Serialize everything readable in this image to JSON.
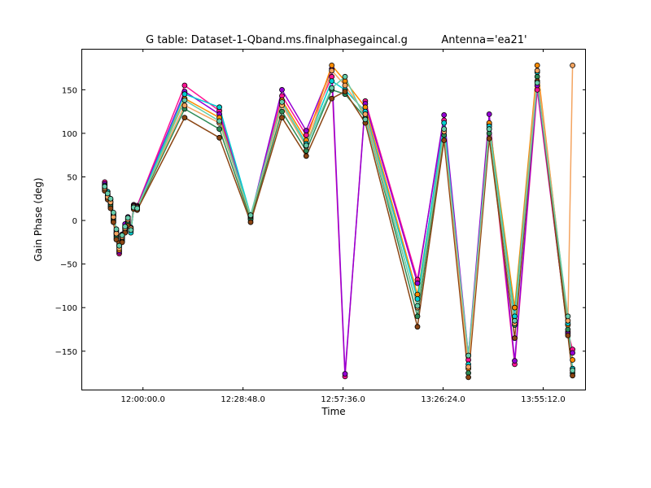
{
  "chart_data": {
    "type": "line",
    "title": "G table: Dataset-1-Qband.ms.finalphasegaincal.g",
    "title_antenna": "Antenna='ea21'",
    "xlabel": "Time",
    "ylabel": "Gain Phase (deg)",
    "x_is_time": true,
    "xlim": [
      "11:42:30",
      "14:07:30"
    ],
    "ylim": [
      -195,
      197
    ],
    "x_ticks": [
      "12:00:00.0",
      "12:28:48.0",
      "12:57:36.0",
      "13:26:24.0",
      "13:55:12.0"
    ],
    "y_ticks": [
      "−150",
      "−100",
      "−50",
      "0",
      "50",
      "100",
      "150"
    ],
    "y_tick_values": [
      -150,
      -100,
      -50,
      0,
      50,
      100,
      150
    ],
    "legend": "none",
    "grid": false,
    "x": [
      "11:49:00",
      "11:49:50",
      "11:50:40",
      "11:51:30",
      "11:52:20",
      "11:53:10",
      "11:54:00",
      "11:54:50",
      "11:55:40",
      "11:56:30",
      "11:57:20",
      "11:58:20",
      "12:12:00",
      "12:22:00",
      "12:31:00",
      "12:40:00",
      "12:47:00",
      "12:54:20",
      "12:58:10",
      "13:04:00",
      "13:19:00",
      "13:26:40",
      "13:33:40",
      "13:39:40",
      "13:47:00",
      "13:53:30",
      "14:02:20",
      "14:03:40"
    ],
    "series": [
      {
        "color": "#ff1493",
        "values": [
          44,
          28,
          22,
          6,
          -14,
          -38,
          -18,
          -6,
          2,
          -10,
          18,
          17,
          155,
          126,
          2,
          143,
          98,
          165,
          -179,
          137,
          -68,
          115,
          -160,
          110,
          -165,
          150,
          -128,
          -148
        ]
      },
      {
        "color": "#9400d3",
        "values": [
          42,
          30,
          24,
          8,
          -12,
          -36,
          -16,
          -4,
          4,
          -8,
          17,
          16,
          148,
          122,
          4,
          150,
          103,
          174,
          -176,
          134,
          -72,
          121,
          -155,
          122,
          -161,
          155,
          -130,
          -152
        ]
      },
      {
        "color": "#ff8c00",
        "values": [
          38,
          26,
          20,
          2,
          -18,
          -34,
          -20,
          -8,
          -2,
          -12,
          16,
          15,
          140,
          118,
          3,
          138,
          92,
          178,
          160,
          130,
          -85,
          105,
          -170,
          112,
          -100,
          178,
          -120,
          -160
        ]
      },
      {
        "color": "#00ced1",
        "values": [
          40,
          33,
          18,
          5,
          -16,
          -30,
          -22,
          -10,
          0,
          -14,
          15,
          14,
          145,
          130,
          6,
          135,
          88,
          160,
          150,
          125,
          -90,
          112,
          -165,
          108,
          -110,
          170,
          -118,
          -170
        ]
      },
      {
        "color": "#2e8b57",
        "values": [
          36,
          29,
          16,
          0,
          -20,
          -28,
          -24,
          -12,
          -4,
          -11,
          14,
          13,
          128,
          105,
          1,
          125,
          80,
          150,
          145,
          118,
          -110,
          98,
          -175,
          100,
          -120,
          165,
          -125,
          -175
        ]
      },
      {
        "color": "#8b4513",
        "values": [
          34,
          24,
          14,
          -2,
          -22,
          -26,
          -25,
          -14,
          -6,
          -10,
          13,
          12,
          118,
          95,
          -2,
          118,
          74,
          140,
          148,
          112,
          -122,
          92,
          -180,
          94,
          -135,
          160,
          -132,
          -178
        ]
      },
      {
        "color": "#f4a460",
        "values": [
          37,
          27,
          21,
          4,
          -15,
          -32,
          -19,
          -9,
          1,
          -9,
          16,
          15,
          132,
          112,
          5,
          132,
          85,
          172,
          155,
          122,
          -100,
          102,
          -168,
          105,
          -118,
          172,
          -115,
          178
        ]
      },
      {
        "color": "#66cdaa",
        "values": [
          39,
          31,
          25,
          9,
          -10,
          -29,
          -17,
          -7,
          3,
          -11,
          15,
          14,
          138,
          114,
          6,
          136,
          86,
          152,
          165,
          116,
          -98,
          105,
          -155,
          105,
          -115,
          158,
          -110,
          -172
        ]
      }
    ]
  }
}
